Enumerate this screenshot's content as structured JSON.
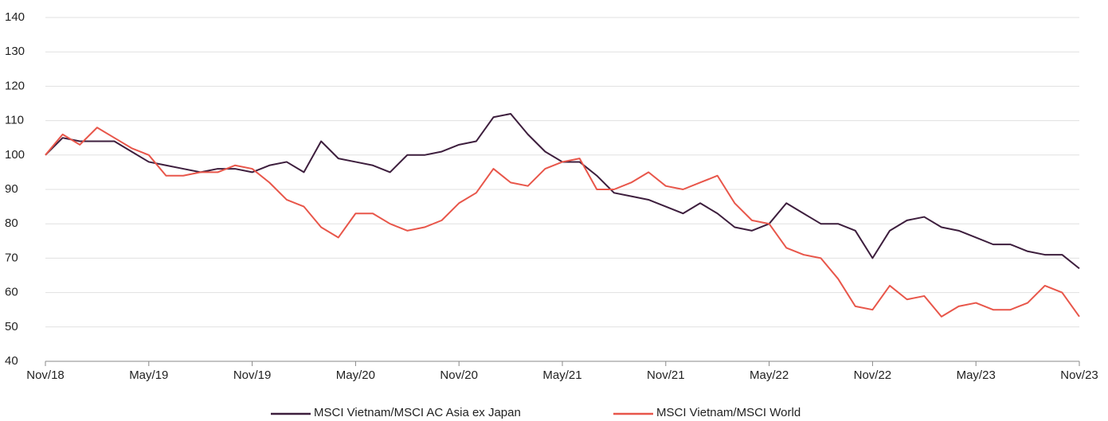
{
  "chart_data": {
    "type": "line",
    "categories": [
      "Nov/18",
      null,
      null,
      null,
      null,
      null,
      "May/19",
      null,
      null,
      null,
      null,
      null,
      "Nov/19",
      null,
      null,
      null,
      null,
      null,
      "May/20",
      null,
      null,
      null,
      null,
      null,
      "Nov/20",
      null,
      null,
      null,
      null,
      null,
      "May/21",
      null,
      null,
      null,
      null,
      null,
      "Nov/21",
      null,
      null,
      null,
      null,
      null,
      "May/22",
      null,
      null,
      null,
      null,
      null,
      "Nov/22",
      null,
      null,
      null,
      null,
      null,
      "May/23",
      null,
      null,
      null,
      null,
      null,
      "Nov/23"
    ],
    "series": [
      {
        "name": "MSCI Vietnam/MSCI AC Asia ex Japan",
        "color": "#3d1e3d",
        "values": [
          100,
          105,
          104,
          104,
          104,
          101,
          98,
          97,
          96,
          95,
          96,
          96,
          95,
          97,
          98,
          95,
          104,
          99,
          98,
          97,
          95,
          100,
          100,
          101,
          103,
          104,
          111,
          112,
          106,
          101,
          98,
          98,
          94,
          89,
          88,
          87,
          85,
          83,
          86,
          83,
          79,
          78,
          80,
          86,
          83,
          80,
          80,
          78,
          70,
          78,
          81,
          82,
          79,
          78,
          76,
          74,
          74,
          72,
          71,
          71,
          67
        ]
      },
      {
        "name": "MSCI Vietnam/MSCI World",
        "color": "#e8564a",
        "values": [
          100,
          106,
          103,
          108,
          105,
          102,
          100,
          94,
          94,
          95,
          95,
          97,
          96,
          92,
          87,
          85,
          79,
          76,
          83,
          83,
          80,
          78,
          79,
          81,
          86,
          89,
          96,
          92,
          91,
          96,
          98,
          99,
          90,
          90,
          92,
          95,
          91,
          90,
          92,
          94,
          86,
          81,
          80,
          73,
          71,
          70,
          64,
          56,
          55,
          62,
          58,
          59,
          53,
          56,
          57,
          55,
          55,
          57,
          62,
          60,
          53
        ]
      }
    ],
    "ylim": [
      40,
      140
    ],
    "yticks": [
      40,
      50,
      60,
      70,
      80,
      90,
      100,
      110,
      120,
      130,
      140
    ],
    "grid": true
  }
}
